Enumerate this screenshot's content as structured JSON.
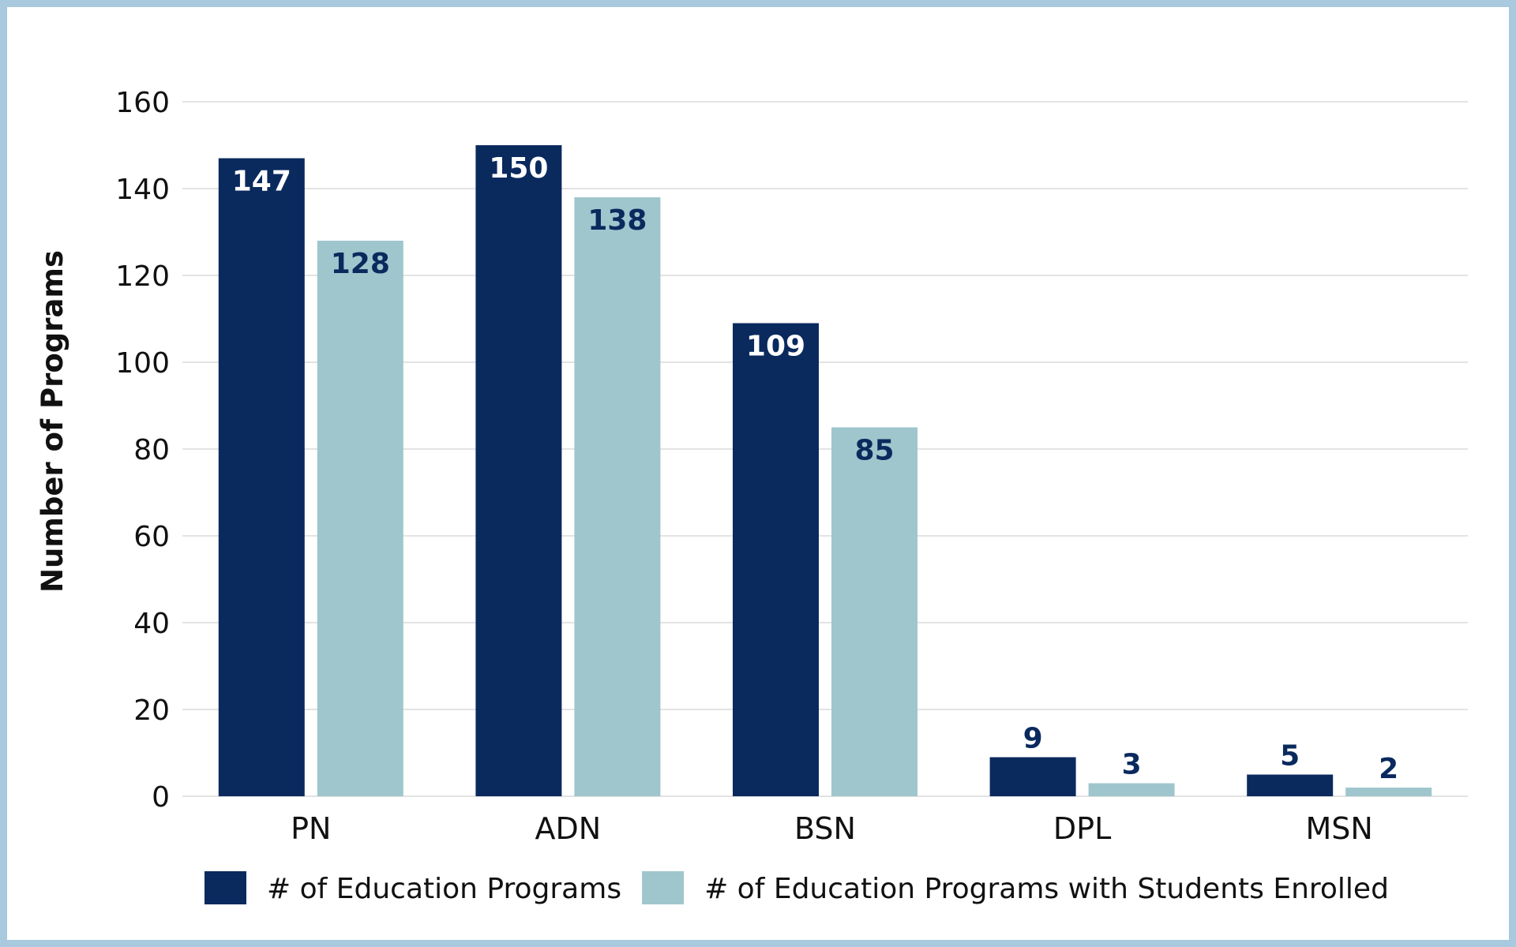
{
  "chart_data": {
    "type": "bar",
    "categories": [
      "PN",
      "ADN",
      "BSN",
      "DPL",
      "MSN"
    ],
    "series": [
      {
        "name": "# of Education Programs",
        "values": [
          147,
          150,
          109,
          9,
          5
        ],
        "color": "#0a2a5e",
        "label_color": "#ffffff"
      },
      {
        "name": "# of Education Programs with Students Enrolled",
        "values": [
          128,
          138,
          85,
          3,
          2
        ],
        "color": "#9fc6cd",
        "label_color": "#0a2a5e"
      }
    ],
    "title": "",
    "xlabel": "",
    "ylabel": "Number of Programs",
    "ylim": [
      0,
      160
    ],
    "yticks": [
      0,
      20,
      40,
      60,
      80,
      100,
      120,
      140,
      160
    ],
    "grid": true,
    "legend_position": "bottom"
  }
}
